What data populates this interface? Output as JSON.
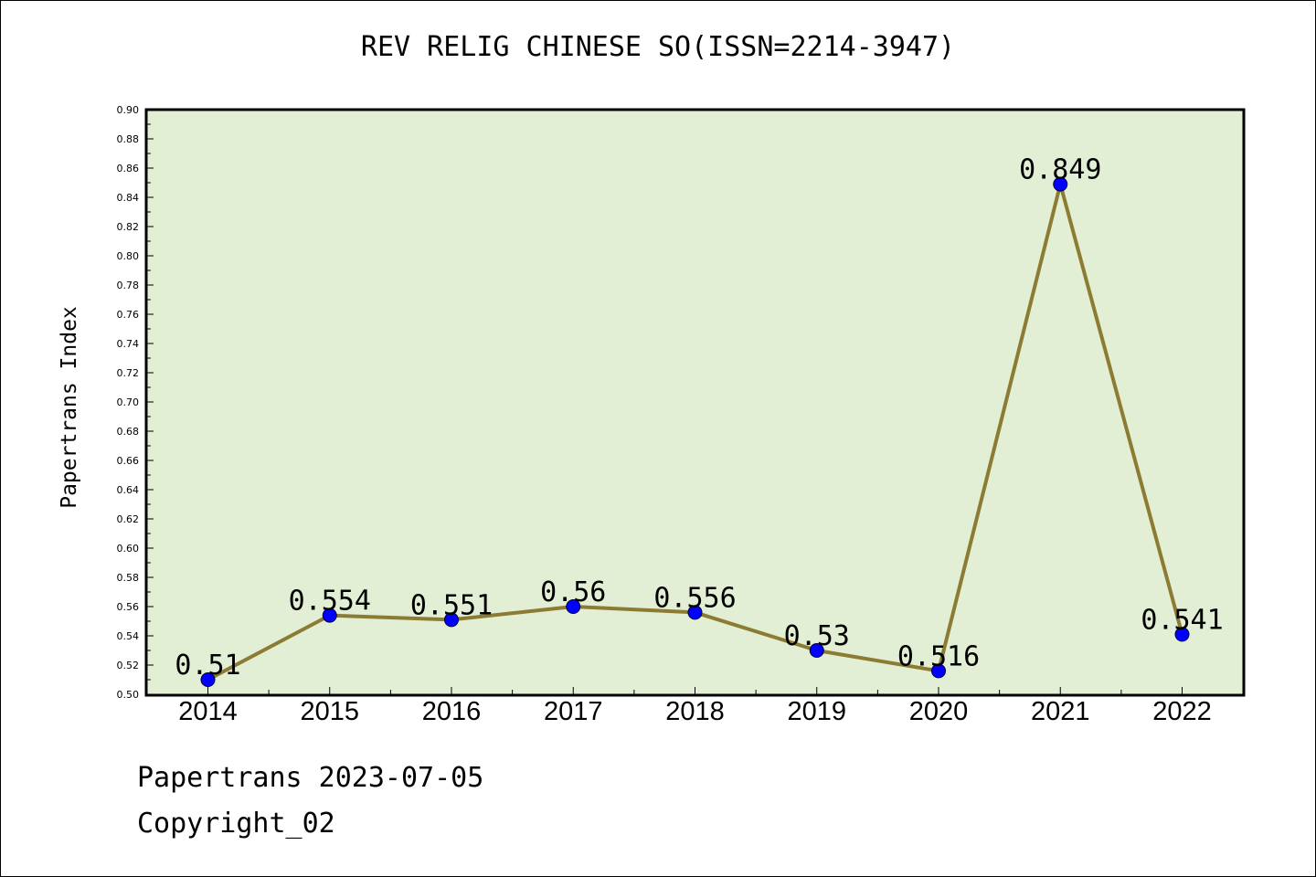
{
  "chart_data": {
    "type": "line",
    "title": "REV RELIG CHINESE SO(ISSN=2214-3947)",
    "xlabel": "",
    "ylabel": "Papertrans Index",
    "x": [
      "2014",
      "2015",
      "2016",
      "2017",
      "2018",
      "2019",
      "2020",
      "2021",
      "2022"
    ],
    "series": [
      {
        "values": [
          0.51,
          0.554,
          0.551,
          0.56,
          0.556,
          0.53,
          0.516,
          0.849,
          0.541
        ]
      }
    ],
    "data_labels": [
      "0.51",
      "0.554",
      "0.551",
      "0.56",
      "0.556",
      "0.53",
      "0.516",
      "0.849",
      "0.541"
    ],
    "yticks": [
      "0.50",
      "0.52",
      "0.54",
      "0.56",
      "0.58",
      "0.60",
      "0.62",
      "0.64",
      "0.66",
      "0.68",
      "0.70",
      "0.72",
      "0.74",
      "0.76",
      "0.78",
      "0.80",
      "0.82",
      "0.84",
      "0.86",
      "0.88",
      "0.90"
    ],
    "ylim": [
      0.5,
      0.9
    ],
    "grid": false,
    "colors": {
      "plot_bg": "#e2efd5",
      "line": "#8c7c33",
      "marker": "#0000ff"
    }
  },
  "footer": {
    "line1": "Papertrans 2023-07-05",
    "line2": "Copyright_02"
  }
}
